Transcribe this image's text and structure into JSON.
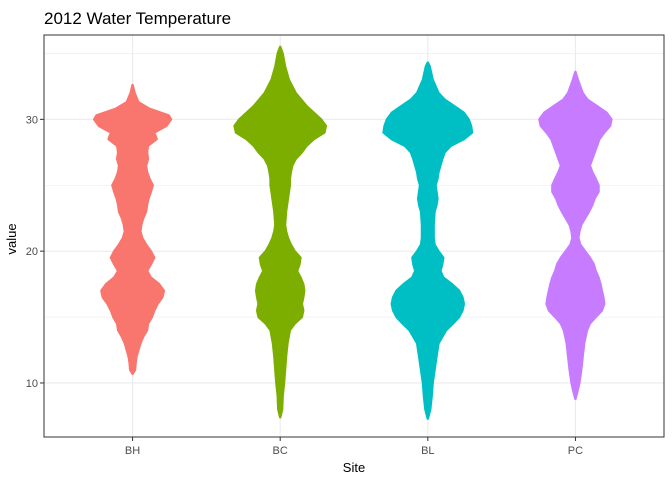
{
  "chart_data": {
    "type": "violin",
    "title": "2012 Water Temperature",
    "xlabel": "Site",
    "ylabel": "value",
    "categories": [
      "BH",
      "BC",
      "BL",
      "PC"
    ],
    "ylim": [
      5.9,
      36.4
    ],
    "yticks": [
      10,
      20,
      30
    ],
    "grid": true,
    "legend": "none",
    "series": [
      {
        "category": "BH",
        "color": "#F8766D",
        "range": [
          10.7,
          32.6
        ],
        "profile": [
          [
            32.6,
            0.0
          ],
          [
            32.0,
            0.04
          ],
          [
            31.3,
            0.12
          ],
          [
            30.8,
            0.35
          ],
          [
            30.3,
            0.75
          ],
          [
            30.0,
            0.8
          ],
          [
            29.5,
            0.7
          ],
          [
            29.0,
            0.45
          ],
          [
            28.5,
            0.5
          ],
          [
            28.0,
            0.32
          ],
          [
            27.5,
            0.3
          ],
          [
            27.0,
            0.32
          ],
          [
            26.5,
            0.28
          ],
          [
            26.0,
            0.3
          ],
          [
            25.5,
            0.35
          ],
          [
            25.0,
            0.42
          ],
          [
            24.5,
            0.38
          ],
          [
            24.0,
            0.33
          ],
          [
            23.5,
            0.3
          ],
          [
            23.0,
            0.28
          ],
          [
            22.5,
            0.22
          ],
          [
            22.0,
            0.18
          ],
          [
            21.5,
            0.16
          ],
          [
            21.0,
            0.2
          ],
          [
            20.5,
            0.28
          ],
          [
            20.0,
            0.38
          ],
          [
            19.5,
            0.45
          ],
          [
            19.0,
            0.38
          ],
          [
            18.5,
            0.3
          ],
          [
            18.0,
            0.38
          ],
          [
            17.5,
            0.55
          ],
          [
            17.0,
            0.65
          ],
          [
            16.5,
            0.62
          ],
          [
            16.0,
            0.52
          ],
          [
            15.5,
            0.45
          ],
          [
            15.0,
            0.4
          ],
          [
            14.5,
            0.32
          ],
          [
            14.0,
            0.3
          ],
          [
            13.5,
            0.22
          ],
          [
            13.0,
            0.16
          ],
          [
            12.5,
            0.12
          ],
          [
            12.0,
            0.08
          ],
          [
            11.5,
            0.06
          ],
          [
            11.0,
            0.05
          ],
          [
            10.7,
            0.0
          ]
        ]
      },
      {
        "category": "BC",
        "color": "#7CAE00",
        "range": [
          7.4,
          35.5
        ],
        "profile": [
          [
            35.5,
            0.0
          ],
          [
            35.0,
            0.05
          ],
          [
            34.0,
            0.1
          ],
          [
            33.0,
            0.18
          ],
          [
            32.0,
            0.32
          ],
          [
            31.0,
            0.55
          ],
          [
            30.5,
            0.7
          ],
          [
            30.0,
            0.85
          ],
          [
            29.5,
            0.95
          ],
          [
            29.0,
            0.92
          ],
          [
            28.5,
            0.7
          ],
          [
            28.0,
            0.55
          ],
          [
            27.5,
            0.45
          ],
          [
            27.0,
            0.32
          ],
          [
            26.5,
            0.25
          ],
          [
            26.0,
            0.22
          ],
          [
            25.5,
            0.2
          ],
          [
            25.0,
            0.2
          ],
          [
            24.5,
            0.18
          ],
          [
            24.0,
            0.16
          ],
          [
            23.0,
            0.12
          ],
          [
            22.0,
            0.1
          ],
          [
            21.5,
            0.12
          ],
          [
            21.0,
            0.16
          ],
          [
            20.5,
            0.22
          ],
          [
            20.0,
            0.3
          ],
          [
            19.5,
            0.42
          ],
          [
            19.0,
            0.4
          ],
          [
            18.5,
            0.35
          ],
          [
            18.0,
            0.42
          ],
          [
            17.5,
            0.48
          ],
          [
            17.0,
            0.5
          ],
          [
            16.5,
            0.48
          ],
          [
            16.0,
            0.45
          ],
          [
            15.5,
            0.48
          ],
          [
            15.0,
            0.45
          ],
          [
            14.5,
            0.3
          ],
          [
            14.0,
            0.2
          ],
          [
            13.0,
            0.15
          ],
          [
            12.0,
            0.12
          ],
          [
            11.0,
            0.1
          ],
          [
            10.0,
            0.08
          ],
          [
            9.0,
            0.05
          ],
          [
            8.0,
            0.04
          ],
          [
            7.4,
            0.0
          ]
        ]
      },
      {
        "category": "BL",
        "color": "#00BFC4",
        "range": [
          7.3,
          34.3
        ],
        "profile": [
          [
            34.3,
            0.0
          ],
          [
            34.0,
            0.04
          ],
          [
            33.0,
            0.1
          ],
          [
            32.0,
            0.22
          ],
          [
            31.5,
            0.35
          ],
          [
            31.0,
            0.55
          ],
          [
            30.5,
            0.75
          ],
          [
            30.0,
            0.85
          ],
          [
            29.5,
            0.9
          ],
          [
            29.0,
            0.92
          ],
          [
            28.5,
            0.75
          ],
          [
            28.0,
            0.48
          ],
          [
            27.5,
            0.35
          ],
          [
            27.0,
            0.3
          ],
          [
            26.5,
            0.26
          ],
          [
            26.0,
            0.22
          ],
          [
            25.5,
            0.2
          ],
          [
            25.0,
            0.16
          ],
          [
            24.5,
            0.18
          ],
          [
            24.0,
            0.2
          ],
          [
            23.5,
            0.18
          ],
          [
            23.0,
            0.14
          ],
          [
            22.0,
            0.12
          ],
          [
            21.0,
            0.12
          ],
          [
            20.5,
            0.14
          ],
          [
            20.0,
            0.22
          ],
          [
            19.5,
            0.32
          ],
          [
            19.0,
            0.3
          ],
          [
            18.5,
            0.26
          ],
          [
            18.0,
            0.32
          ],
          [
            17.5,
            0.5
          ],
          [
            17.0,
            0.65
          ],
          [
            16.5,
            0.72
          ],
          [
            16.0,
            0.75
          ],
          [
            15.5,
            0.72
          ],
          [
            15.0,
            0.65
          ],
          [
            14.5,
            0.52
          ],
          [
            14.0,
            0.38
          ],
          [
            13.5,
            0.3
          ],
          [
            13.0,
            0.22
          ],
          [
            12.0,
            0.18
          ],
          [
            11.0,
            0.14
          ],
          [
            10.0,
            0.1
          ],
          [
            9.0,
            0.08
          ],
          [
            8.0,
            0.05
          ],
          [
            7.3,
            0.0
          ]
        ]
      },
      {
        "category": "PC",
        "color": "#C77CFF",
        "range": [
          8.8,
          33.6
        ],
        "profile": [
          [
            33.6,
            0.0
          ],
          [
            33.0,
            0.05
          ],
          [
            32.0,
            0.15
          ],
          [
            31.5,
            0.25
          ],
          [
            31.0,
            0.45
          ],
          [
            30.5,
            0.65
          ],
          [
            30.0,
            0.75
          ],
          [
            29.5,
            0.72
          ],
          [
            29.0,
            0.6
          ],
          [
            28.5,
            0.5
          ],
          [
            28.0,
            0.45
          ],
          [
            27.5,
            0.4
          ],
          [
            27.0,
            0.35
          ],
          [
            26.5,
            0.3
          ],
          [
            26.0,
            0.35
          ],
          [
            25.5,
            0.42
          ],
          [
            25.0,
            0.48
          ],
          [
            24.5,
            0.48
          ],
          [
            24.0,
            0.4
          ],
          [
            23.5,
            0.35
          ],
          [
            23.0,
            0.28
          ],
          [
            22.5,
            0.2
          ],
          [
            22.0,
            0.12
          ],
          [
            21.5,
            0.08
          ],
          [
            21.0,
            0.06
          ],
          [
            20.5,
            0.1
          ],
          [
            20.0,
            0.2
          ],
          [
            19.5,
            0.3
          ],
          [
            19.0,
            0.38
          ],
          [
            18.5,
            0.42
          ],
          [
            18.0,
            0.48
          ],
          [
            17.5,
            0.52
          ],
          [
            17.0,
            0.55
          ],
          [
            16.5,
            0.58
          ],
          [
            16.0,
            0.6
          ],
          [
            15.5,
            0.55
          ],
          [
            15.0,
            0.42
          ],
          [
            14.5,
            0.3
          ],
          [
            14.0,
            0.24
          ],
          [
            13.0,
            0.18
          ],
          [
            12.0,
            0.15
          ],
          [
            11.0,
            0.12
          ],
          [
            10.0,
            0.08
          ],
          [
            9.5,
            0.05
          ],
          [
            8.8,
            0.0
          ]
        ]
      }
    ]
  }
}
